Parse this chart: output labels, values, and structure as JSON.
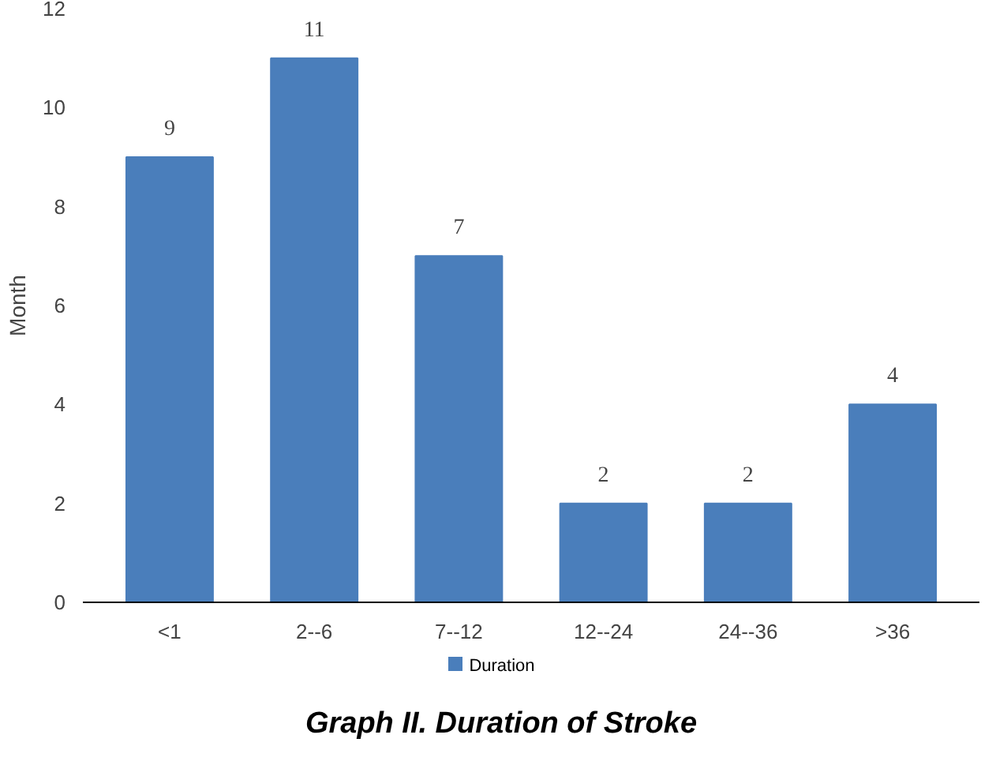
{
  "chart_data": {
    "type": "bar",
    "title": "Graph II. Duration of Stroke",
    "ylabel": "Month",
    "categories": [
      "<1",
      "2--6",
      "7--12",
      "12--24",
      "24--36",
      ">36"
    ],
    "series": [
      {
        "name": "Duration",
        "color": "#4a7ebb",
        "values": [
          9,
          11,
          7,
          2,
          2,
          4
        ]
      }
    ],
    "ylim": [
      0,
      12
    ],
    "yticks": [
      0,
      2,
      4,
      6,
      8,
      10,
      12
    ],
    "data_labels": true,
    "grid": false,
    "legend": "bottom"
  }
}
